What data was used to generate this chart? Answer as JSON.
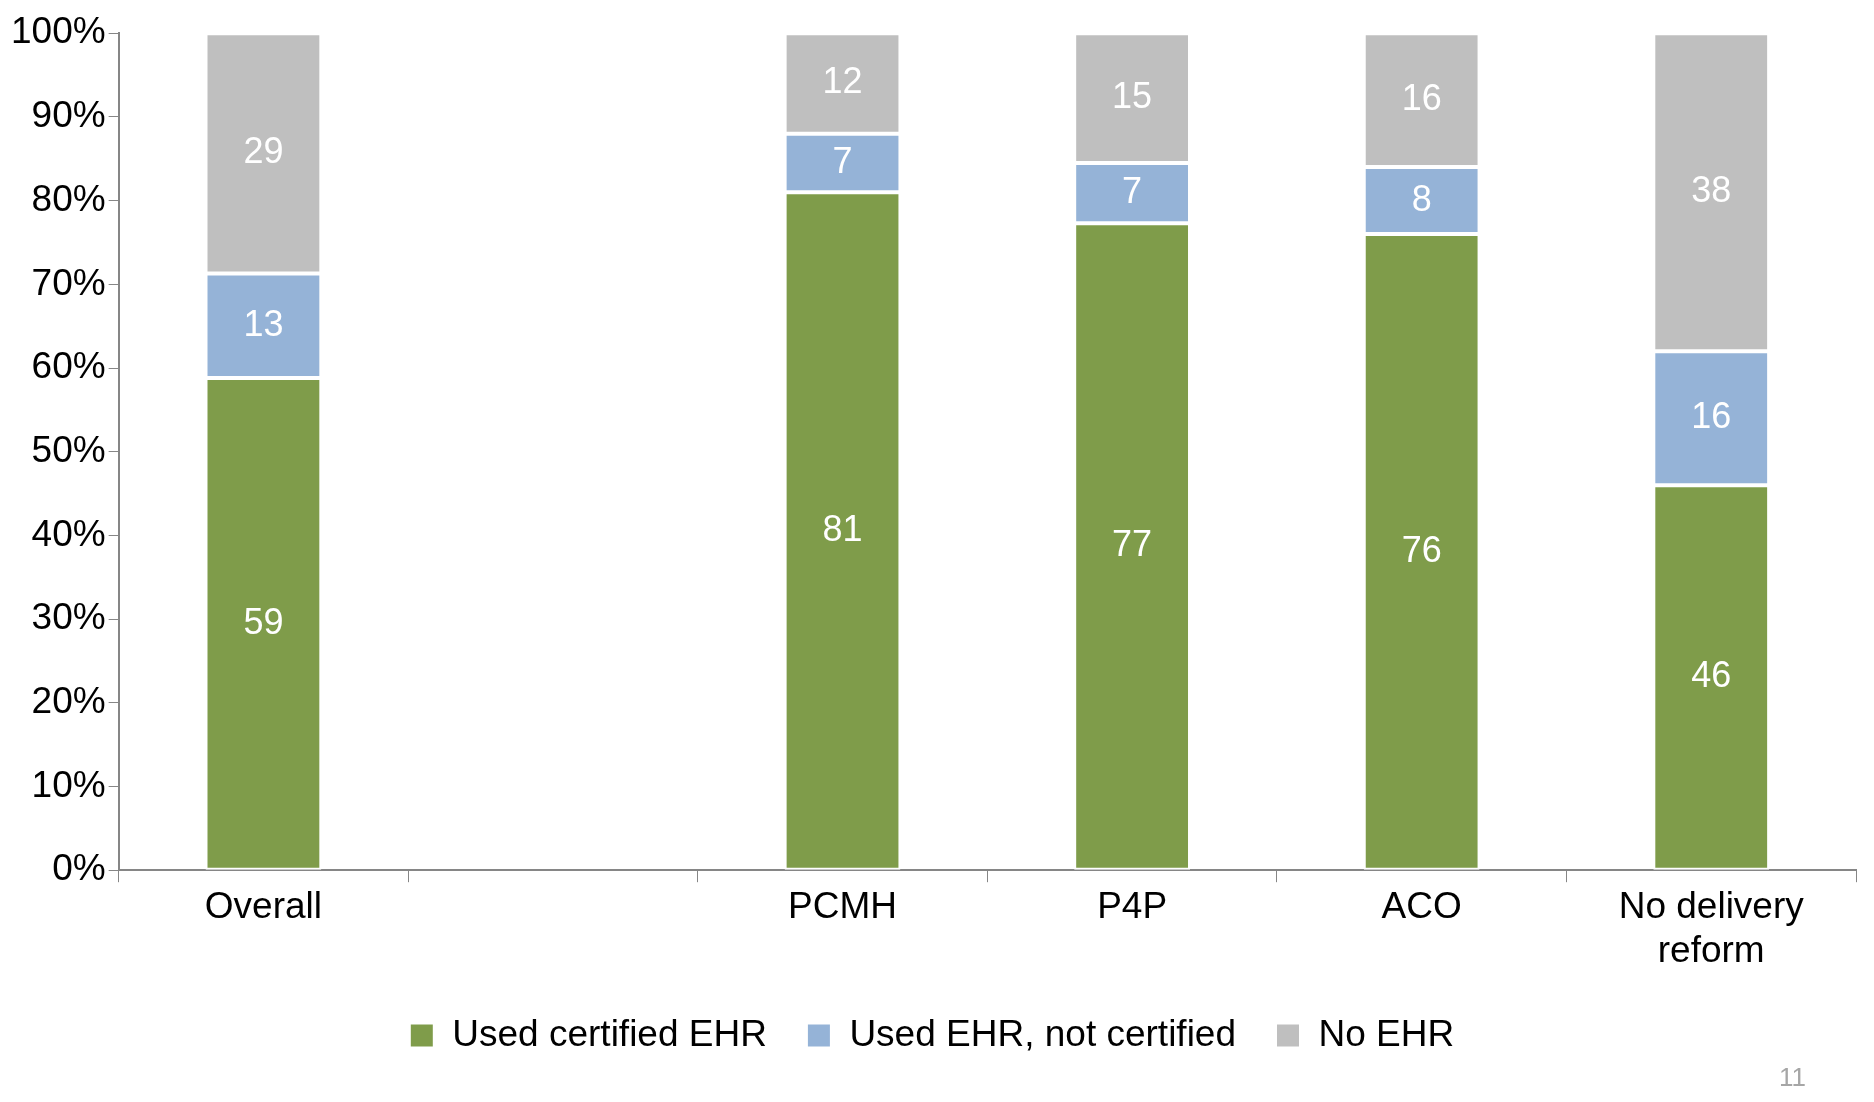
{
  "chart_data": {
    "type": "bar",
    "stacked": true,
    "categories": [
      "Overall",
      null,
      "PCMH",
      "P4P",
      "ACO",
      "No delivery reform"
    ],
    "series": [
      {
        "name": "Used certified EHR",
        "color": "#7f9c4a",
        "values": [
          58.8,
          null,
          81,
          77.3,
          76,
          46
        ],
        "value_labels": [
          "59",
          null,
          "81",
          "77",
          "76",
          "46"
        ]
      },
      {
        "name": "Used EHR, not certified",
        "color": "#95b3d7",
        "values": [
          12.5,
          null,
          7,
          7.2,
          8,
          16
        ],
        "value_labels": [
          "13",
          null,
          "7",
          "7",
          "8",
          "16"
        ]
      },
      {
        "name": "No EHR",
        "color": "#bfbfbf",
        "values": [
          28.7,
          null,
          12,
          15.5,
          16,
          38
        ],
        "value_labels": [
          "29",
          null,
          "12",
          "15",
          "16",
          "38"
        ]
      }
    ],
    "ylim": [
      0,
      100
    ],
    "yticks": [
      {
        "value": 0,
        "label": "0%"
      },
      {
        "value": 10,
        "label": "10%"
      },
      {
        "value": 20,
        "label": "20%"
      },
      {
        "value": 30,
        "label": "30%"
      },
      {
        "value": 40,
        "label": "40%"
      },
      {
        "value": 50,
        "label": "50%"
      },
      {
        "value": 60,
        "label": "60%"
      },
      {
        "value": 70,
        "label": "70%"
      },
      {
        "value": 80,
        "label": "80%"
      },
      {
        "value": 90,
        "label": "90%"
      },
      {
        "value": 100,
        "label": "100%"
      }
    ],
    "grid": false,
    "legend": "bottom",
    "annotations": [
      "11"
    ]
  }
}
